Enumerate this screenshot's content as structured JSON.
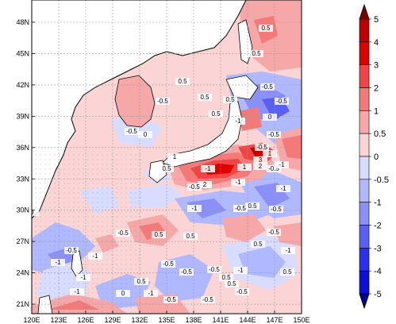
{
  "map": {
    "lon_ticks": [
      "120E",
      "123E",
      "126E",
      "129E",
      "132E",
      "135E",
      "138E",
      "141E",
      "144E",
      "147E",
      "150E"
    ],
    "lat_ticks": [
      "48N",
      "45N",
      "42N",
      "39N",
      "36N",
      "33N",
      "30N",
      "27N",
      "24N",
      "21N"
    ],
    "contour_labels": [
      "0.5",
      "0.5",
      "0.5",
      "-0.5",
      "0.5",
      "-0.5",
      "0.5",
      "0.5",
      "-1",
      "-0.5",
      "-0.5",
      "0",
      "-0.5",
      "1",
      "-0.5",
      "3",
      "1",
      "-0.5",
      "-1",
      "2",
      "0.5",
      "-1",
      "2",
      "0.5",
      "-0.5",
      "-1",
      "-1",
      "-0.5",
      "-0.5",
      "-0.5",
      "-1",
      "-1",
      "0.5",
      "-0.5",
      "-0.5",
      "-0.5",
      "-1",
      "0.5",
      "-1",
      "0",
      "-0.5",
      "-0.5",
      "0.5",
      "-1",
      "0.5",
      "0.5",
      "-1",
      "0.5",
      "-0.5",
      "0",
      "-0.5",
      "-0.5",
      "-1",
      "0",
      "1",
      "-1",
      "0.5"
    ],
    "colors": {
      "land": "#ffffff",
      "coast": "#000000",
      "grid": "#9a9a9a"
    }
  },
  "colorbar": {
    "labels": [
      "5",
      "4",
      "3",
      "2",
      "1",
      "0.5",
      "0",
      "-0.5",
      "-1",
      "-2",
      "-3",
      "-4",
      "-5"
    ],
    "colors": [
      "#7a0000",
      "#c00000",
      "#e00000",
      "#f04545",
      "#f47a7a",
      "#f6a8a8",
      "#fbd5d5",
      "#d8dcff",
      "#b0b8ff",
      "#8a90f8",
      "#5a60f2",
      "#2a30ee",
      "#0a10d8",
      "#000090"
    ]
  }
}
